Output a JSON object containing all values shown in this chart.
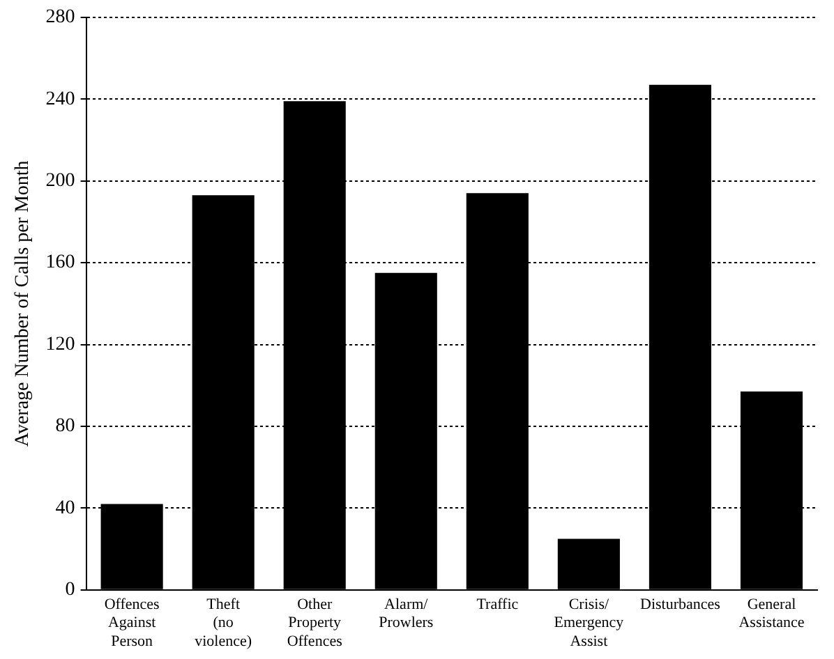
{
  "chart_data": {
    "type": "bar",
    "ylabel": "Average Number of Calls per Month",
    "categories": [
      "Offences Against Person",
      "Theft (no violence)",
      "Other Property Offences",
      "Alarm/ Prowlers",
      "Traffic",
      "Crisis/ Emergency Assist",
      "Disturbances",
      "General Assistance"
    ],
    "values": [
      42,
      193,
      239,
      155,
      194,
      25,
      247,
      97
    ],
    "color": "#000000",
    "ylim": [
      0,
      280
    ],
    "yticks": [
      0,
      40,
      80,
      120,
      160,
      200,
      240,
      280
    ],
    "grid": "y",
    "legend": false
  }
}
